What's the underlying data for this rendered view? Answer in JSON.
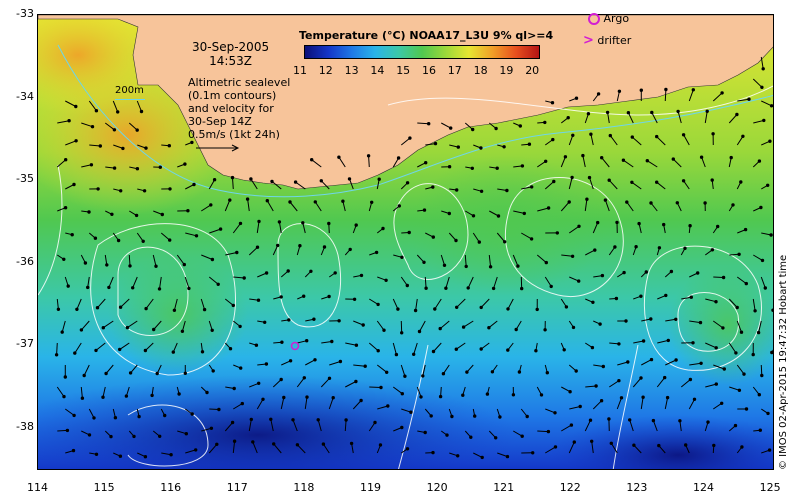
{
  "map": {
    "x_ticks": [
      "114",
      "115",
      "116",
      "117",
      "118",
      "119",
      "120",
      "121",
      "122",
      "123",
      "124",
      "125"
    ],
    "y_ticks": [
      "-33",
      "-34",
      "-35",
      "-36",
      "-37",
      "-38"
    ],
    "date": "30-Sep-2005",
    "time": "14:53Z",
    "contour_scale_label": "200m",
    "altimetry_lines": [
      "Altimetric sealevel",
      "(0.1m contours)",
      "and velocity for",
      "30-Sep 14Z",
      "0.5m/s (1kt 24h)"
    ],
    "colorbar_title": "Temperature (°C) NOAA17_L3U 9% ql>=4",
    "colorbar_ticks": [
      "11",
      "12",
      "13",
      "14",
      "15",
      "16",
      "17",
      "18",
      "19",
      "20"
    ],
    "legend": {
      "argo": "Argo",
      "drifter": "drifter"
    },
    "credit": "© IMOS 02-Apr-2015 19:47:32 Hobart time",
    "colors": {
      "land": "#f7c49a",
      "colormap": [
        "#0a0f78",
        "#1436c8",
        "#1f78e6",
        "#2ab4e8",
        "#3cc8a8",
        "#50c850",
        "#9ad83a",
        "#e6e632",
        "#f0a028",
        "#e8501e",
        "#b41414"
      ],
      "argo_marker": "#d21ed2",
      "contour": "#ffffff",
      "vector": "#000000"
    }
  }
}
